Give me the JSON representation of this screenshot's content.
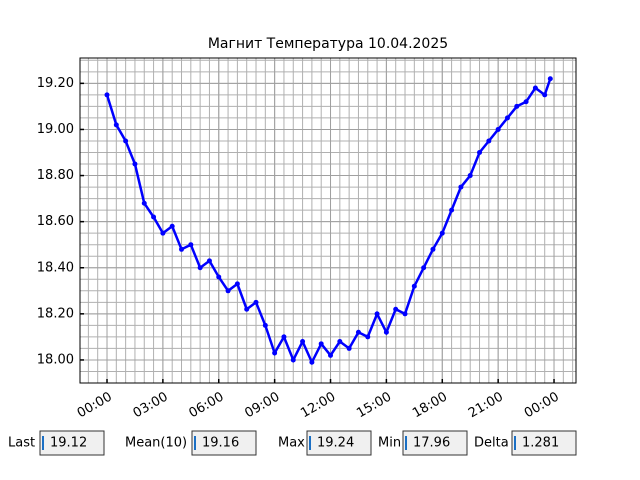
{
  "chart_data": {
    "type": "line",
    "title": "Магнит Температура 10.04.2025",
    "x": [
      0,
      0.5,
      1,
      1.5,
      2,
      2.5,
      3,
      3.5,
      4,
      4.5,
      5,
      5.5,
      6,
      6.5,
      7,
      7.5,
      8,
      8.5,
      9,
      9.5,
      10,
      10.5,
      11,
      11.5,
      12,
      12.5,
      13,
      13.5,
      14,
      14.5,
      15,
      15.5,
      16,
      16.5,
      17,
      17.5,
      18,
      18.5,
      19,
      19.5,
      20,
      20.5,
      21,
      21.5,
      22,
      22.5,
      23,
      23.5,
      23.8
    ],
    "series": [
      {
        "color": "#0000ff",
        "values": [
          19.15,
          19.02,
          18.95,
          18.85,
          18.68,
          18.62,
          18.55,
          18.58,
          18.48,
          18.5,
          18.4,
          18.43,
          18.36,
          18.3,
          18.33,
          18.22,
          18.25,
          18.15,
          18.03,
          18.1,
          18.0,
          18.08,
          17.99,
          18.07,
          18.02,
          18.08,
          18.05,
          18.12,
          18.1,
          18.2,
          18.12,
          18.22,
          18.2,
          18.32,
          18.4,
          18.48,
          18.55,
          18.65,
          18.75,
          18.8,
          18.9,
          18.95,
          19.0,
          19.05,
          19.1,
          19.12,
          19.18,
          19.15,
          19.22
        ]
      }
    ],
    "xlim": [
      -1.45,
      25.18
    ],
    "ylim": [
      17.9,
      19.31
    ],
    "xticks": [
      {
        "value": 0,
        "label": "00:00"
      },
      {
        "value": 3,
        "label": "03:00"
      },
      {
        "value": 6,
        "label": "06:00"
      },
      {
        "value": 9,
        "label": "09:00"
      },
      {
        "value": 12,
        "label": "12:00"
      },
      {
        "value": 15,
        "label": "15:00"
      },
      {
        "value": 18,
        "label": "18:00"
      },
      {
        "value": 21,
        "label": "21:00"
      },
      {
        "value": 24,
        "label": "00:00"
      }
    ],
    "yticks": [
      {
        "value": 18,
        "label": "18.00"
      },
      {
        "value": 18.2,
        "label": "18.20"
      },
      {
        "value": 18.4,
        "label": "18.40"
      },
      {
        "value": 18.6,
        "label": "18.60"
      },
      {
        "value": 18.8,
        "label": "18.80"
      },
      {
        "value": 19,
        "label": "19.00"
      },
      {
        "value": 19.2,
        "label": "19.20"
      }
    ],
    "grid": true,
    "minor_grid": true
  },
  "readouts": [
    {
      "label": "Last",
      "value": 19.12
    },
    {
      "label": "Mean(10)",
      "value": 19.16
    },
    {
      "label": "Max",
      "value": 19.24
    },
    {
      "label": "Min",
      "value": 17.96
    },
    {
      "label": "Delta",
      "value": 1.281
    }
  ]
}
